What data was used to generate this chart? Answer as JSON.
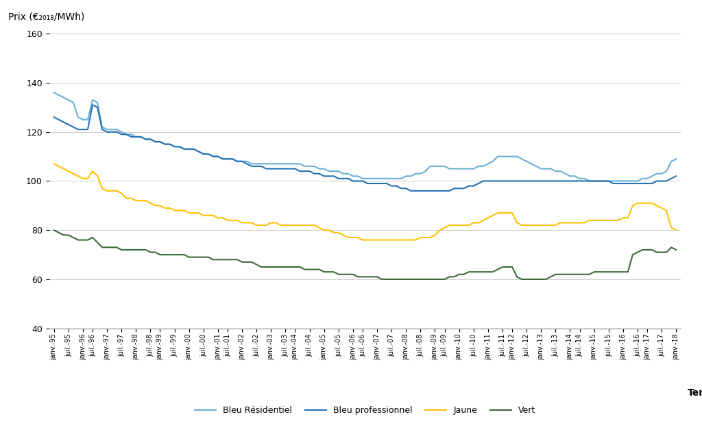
{
  "ylabel": "Prix (€₂₀₁₈/MWh)",
  "xlabel": "Temps",
  "ylim": [
    40,
    160
  ],
  "yticks": [
    40,
    60,
    80,
    100,
    120,
    140,
    160
  ],
  "background_color": "#ffffff",
  "grid_color": "#cccccc",
  "colors": {
    "bleu_res": "#6baed6",
    "bleu_pro": "#2171b5",
    "jaune": "#ffc000",
    "vert": "#3a6b35"
  },
  "legend_labels": [
    "Bleu Résidentiel",
    "Bleu professionnel",
    "Jaune",
    "Vert"
  ],
  "series": {
    "bleu_res": [
      136,
      135,
      134,
      133,
      132,
      126,
      125,
      125,
      133,
      132,
      122,
      121,
      121,
      121,
      120,
      119,
      119,
      118,
      118,
      117,
      117,
      116,
      116,
      115,
      115,
      114,
      114,
      113,
      113,
      113,
      112,
      111,
      111,
      110,
      110,
      109,
      109,
      109,
      108,
      108,
      108,
      107,
      107,
      107,
      107,
      107,
      107,
      107,
      107,
      107,
      107,
      107,
      106,
      106,
      106,
      105,
      105,
      104,
      104,
      104,
      103,
      103,
      102,
      102,
      101,
      101,
      101,
      101,
      101,
      101,
      101,
      101,
      101,
      102,
      102,
      103,
      103,
      104,
      106,
      106,
      106,
      106,
      105,
      105,
      105,
      105,
      105,
      105,
      106,
      106,
      107,
      108,
      110,
      110,
      110,
      110,
      110,
      109,
      108,
      107,
      106,
      105,
      105,
      105,
      104,
      104,
      103,
      102,
      102,
      101,
      101,
      100,
      100,
      100,
      100,
      100,
      100,
      100,
      100,
      100,
      100,
      100,
      101,
      101,
      102,
      103,
      103,
      104,
      108,
      109
    ],
    "bleu_pro": [
      126,
      125,
      124,
      123,
      122,
      121,
      121,
      121,
      131,
      130,
      121,
      120,
      120,
      120,
      119,
      119,
      118,
      118,
      118,
      117,
      117,
      116,
      116,
      115,
      115,
      114,
      114,
      113,
      113,
      113,
      112,
      111,
      111,
      110,
      110,
      109,
      109,
      109,
      108,
      108,
      107,
      106,
      106,
      106,
      105,
      105,
      105,
      105,
      105,
      105,
      105,
      104,
      104,
      104,
      103,
      103,
      102,
      102,
      102,
      101,
      101,
      101,
      100,
      100,
      100,
      99,
      99,
      99,
      99,
      99,
      98,
      98,
      97,
      97,
      96,
      96,
      96,
      96,
      96,
      96,
      96,
      96,
      96,
      97,
      97,
      97,
      98,
      98,
      99,
      100,
      100,
      100,
      100,
      100,
      100,
      100,
      100,
      100,
      100,
      100,
      100,
      100,
      100,
      100,
      100,
      100,
      100,
      100,
      100,
      100,
      100,
      100,
      100,
      100,
      100,
      100,
      99,
      99,
      99,
      99,
      99,
      99,
      99,
      99,
      99,
      100,
      100,
      100,
      101,
      102
    ],
    "jaune": [
      107,
      106,
      105,
      104,
      103,
      102,
      101,
      101,
      104,
      102,
      97,
      96,
      96,
      96,
      95,
      93,
      93,
      92,
      92,
      92,
      91,
      90,
      90,
      89,
      89,
      88,
      88,
      88,
      87,
      87,
      87,
      86,
      86,
      86,
      85,
      85,
      84,
      84,
      84,
      83,
      83,
      83,
      82,
      82,
      82,
      83,
      83,
      82,
      82,
      82,
      82,
      82,
      82,
      82,
      82,
      81,
      80,
      80,
      79,
      79,
      78,
      77,
      77,
      77,
      76,
      76,
      76,
      76,
      76,
      76,
      76,
      76,
      76,
      76,
      76,
      76,
      77,
      77,
      77,
      78,
      80,
      81,
      82,
      82,
      82,
      82,
      82,
      83,
      83,
      84,
      85,
      86,
      87,
      87,
      87,
      87,
      83,
      82,
      82,
      82,
      82,
      82,
      82,
      82,
      82,
      83,
      83,
      83,
      83,
      83,
      83,
      84,
      84,
      84,
      84,
      84,
      84,
      84,
      85,
      85,
      90,
      91,
      91,
      91,
      91,
      90,
      89,
      88,
      81,
      80
    ],
    "vert": [
      80,
      79,
      78,
      78,
      77,
      76,
      76,
      76,
      77,
      75,
      73,
      73,
      73,
      73,
      72,
      72,
      72,
      72,
      72,
      72,
      71,
      71,
      70,
      70,
      70,
      70,
      70,
      70,
      69,
      69,
      69,
      69,
      69,
      68,
      68,
      68,
      68,
      68,
      68,
      67,
      67,
      67,
      66,
      65,
      65,
      65,
      65,
      65,
      65,
      65,
      65,
      65,
      64,
      64,
      64,
      64,
      63,
      63,
      63,
      62,
      62,
      62,
      62,
      61,
      61,
      61,
      61,
      61,
      60,
      60,
      60,
      60,
      60,
      60,
      60,
      60,
      60,
      60,
      60,
      60,
      60,
      60,
      61,
      61,
      62,
      62,
      63,
      63,
      63,
      63,
      63,
      63,
      64,
      65,
      65,
      65,
      61,
      60,
      60,
      60,
      60,
      60,
      60,
      61,
      62,
      62,
      62,
      62,
      62,
      62,
      62,
      62,
      63,
      63,
      63,
      63,
      63,
      63,
      63,
      63,
      70,
      71,
      72,
      72,
      72,
      71,
      71,
      71,
      73,
      72
    ]
  },
  "x_tick_labels": [
    "janv.-95",
    "juil.-95",
    "janv.-96",
    "juil.-96",
    "janv.-97",
    "juil.-97",
    "janv.-98",
    "juil.-98",
    "janv.-99",
    "juil.-99",
    "janv.-00",
    "juil.-00",
    "janv.-01",
    "juil.-01",
    "janv.-02",
    "juil.-02",
    "janv.-03",
    "juil.-03",
    "janv.-04",
    "juil.-04",
    "janv.-05",
    "juil.-05",
    "janv.-06",
    "juil.-06",
    "janv.-07",
    "juil.-07",
    "janv.-08",
    "juil.-08",
    "janv.-09",
    "juil.-09",
    "janv.-10",
    "juil.-10",
    "janv.-11",
    "juil.-11",
    "janv.-12",
    "juil.-12",
    "janv.-13",
    "juil.-13",
    "janv.-14",
    "juil.-14",
    "janv.-15",
    "juil.-15",
    "janv.-16",
    "juil.-16",
    "janv.-17",
    "juil.-17",
    "janv.-18"
  ]
}
